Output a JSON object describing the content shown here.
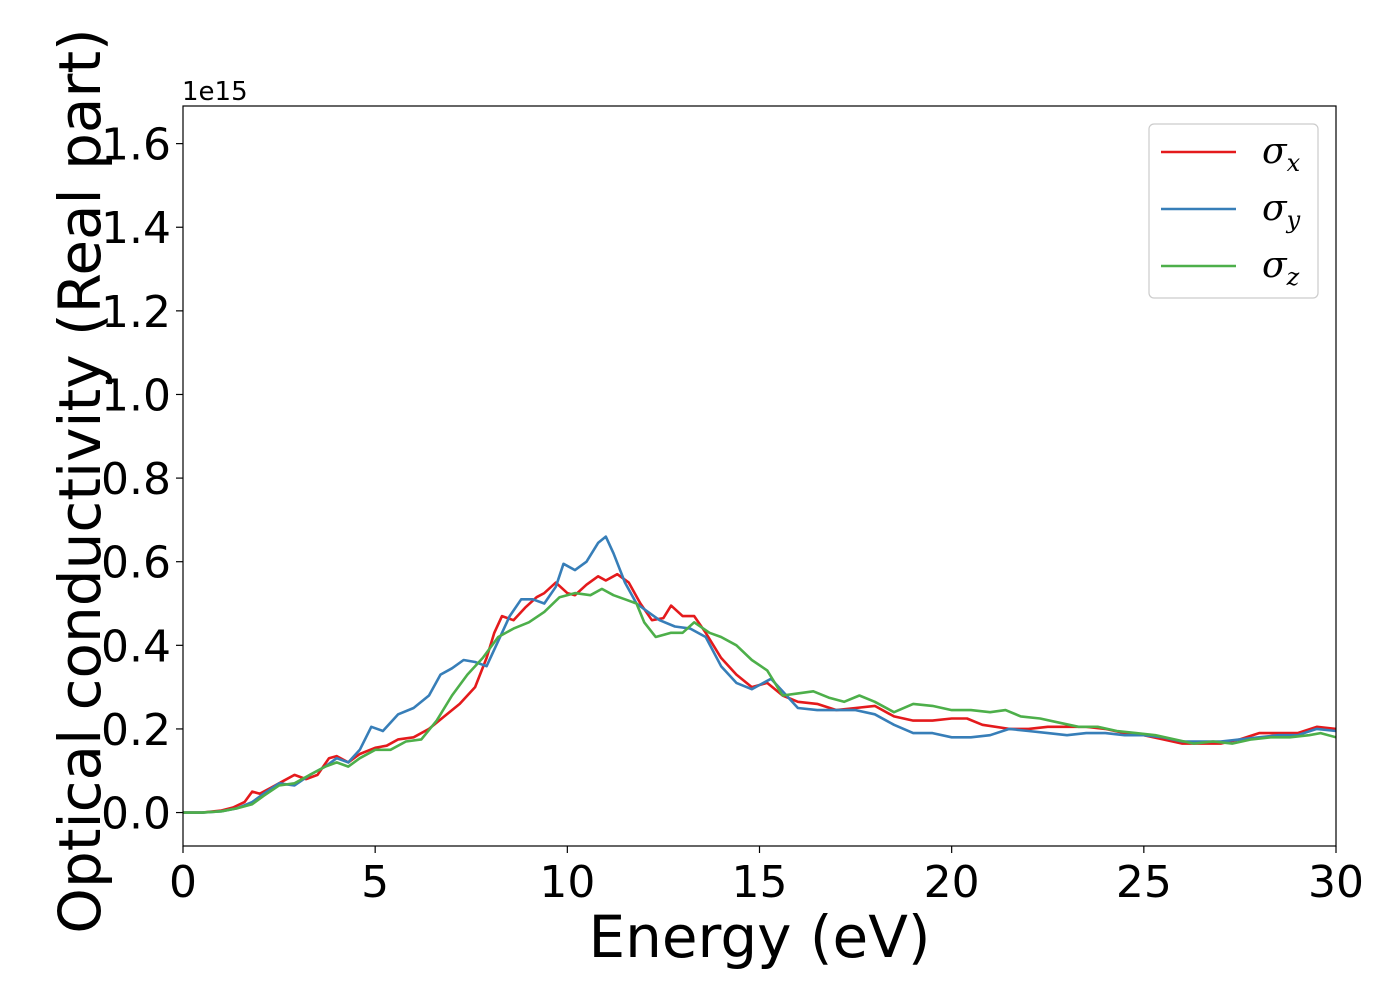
{
  "chart_data": {
    "type": "line",
    "title": "",
    "xlabel": "Energy (eV)",
    "ylabel": "Optical conductivity (Real part)",
    "offset_text": "1e15",
    "xlim": [
      0,
      30
    ],
    "ylim": [
      -0.08,
      1.69
    ],
    "y_scale_factor": 1000000000000000.0,
    "xticks": [
      0,
      5,
      10,
      15,
      20,
      25,
      30
    ],
    "xtick_labels": [
      "0",
      "5",
      "10",
      "15",
      "20",
      "25",
      "30"
    ],
    "yticks": [
      0.0,
      0.2,
      0.4,
      0.6,
      0.8,
      1.0,
      1.2,
      1.4,
      1.6
    ],
    "ytick_labels": [
      "0.0",
      "0.2",
      "0.4",
      "0.6",
      "0.8",
      "1.0",
      "1.2",
      "1.4",
      "1.6"
    ],
    "grid": false,
    "legend_position": "top-right",
    "series": [
      {
        "name": "σx",
        "legend_base": "σ",
        "legend_sub": "x",
        "color": "#e41a1c",
        "points": [
          [
            0,
            0
          ],
          [
            0.5,
            0
          ],
          [
            1,
            0.005
          ],
          [
            1.3,
            0.012
          ],
          [
            1.6,
            0.025
          ],
          [
            1.8,
            0.05
          ],
          [
            2,
            0.045
          ],
          [
            2.3,
            0.06
          ],
          [
            2.6,
            0.075
          ],
          [
            2.9,
            0.09
          ],
          [
            3.2,
            0.08
          ],
          [
            3.5,
            0.09
          ],
          [
            3.8,
            0.13
          ],
          [
            4.0,
            0.135
          ],
          [
            4.3,
            0.12
          ],
          [
            4.6,
            0.14
          ],
          [
            5.0,
            0.155
          ],
          [
            5.3,
            0.16
          ],
          [
            5.6,
            0.175
          ],
          [
            6.0,
            0.18
          ],
          [
            6.4,
            0.2
          ],
          [
            6.8,
            0.23
          ],
          [
            7.2,
            0.26
          ],
          [
            7.6,
            0.3
          ],
          [
            7.9,
            0.37
          ],
          [
            8.1,
            0.43
          ],
          [
            8.3,
            0.47
          ],
          [
            8.6,
            0.46
          ],
          [
            8.9,
            0.49
          ],
          [
            9.2,
            0.515
          ],
          [
            9.4,
            0.525
          ],
          [
            9.7,
            0.55
          ],
          [
            10.0,
            0.525
          ],
          [
            10.2,
            0.52
          ],
          [
            10.5,
            0.545
          ],
          [
            10.8,
            0.565
          ],
          [
            11.0,
            0.555
          ],
          [
            11.3,
            0.57
          ],
          [
            11.6,
            0.55
          ],
          [
            11.9,
            0.5
          ],
          [
            12.2,
            0.46
          ],
          [
            12.5,
            0.465
          ],
          [
            12.7,
            0.495
          ],
          [
            13.0,
            0.47
          ],
          [
            13.3,
            0.47
          ],
          [
            13.6,
            0.43
          ],
          [
            14.0,
            0.37
          ],
          [
            14.4,
            0.33
          ],
          [
            14.8,
            0.3
          ],
          [
            15.2,
            0.31
          ],
          [
            15.6,
            0.28
          ],
          [
            16.0,
            0.265
          ],
          [
            16.5,
            0.26
          ],
          [
            17.0,
            0.245
          ],
          [
            17.5,
            0.25
          ],
          [
            18.0,
            0.255
          ],
          [
            18.5,
            0.23
          ],
          [
            19.0,
            0.22
          ],
          [
            19.5,
            0.22
          ],
          [
            20.0,
            0.225
          ],
          [
            20.4,
            0.225
          ],
          [
            20.8,
            0.21
          ],
          [
            21.5,
            0.2
          ],
          [
            22.0,
            0.2
          ],
          [
            22.5,
            0.205
          ],
          [
            23.0,
            0.205
          ],
          [
            23.5,
            0.205
          ],
          [
            24.0,
            0.2
          ],
          [
            24.5,
            0.19
          ],
          [
            25.0,
            0.185
          ],
          [
            25.5,
            0.175
          ],
          [
            26.0,
            0.165
          ],
          [
            26.5,
            0.165
          ],
          [
            27.0,
            0.165
          ],
          [
            27.5,
            0.175
          ],
          [
            28.0,
            0.19
          ],
          [
            28.5,
            0.19
          ],
          [
            29.0,
            0.19
          ],
          [
            29.5,
            0.205
          ],
          [
            30,
            0.2
          ]
        ]
      },
      {
        "name": "σy",
        "legend_base": "σ",
        "legend_sub": "y",
        "color": "#377eb8",
        "points": [
          [
            0,
            0
          ],
          [
            0.5,
            0
          ],
          [
            1,
            0.003
          ],
          [
            1.4,
            0.01
          ],
          [
            1.8,
            0.025
          ],
          [
            2.1,
            0.045
          ],
          [
            2.5,
            0.07
          ],
          [
            2.9,
            0.065
          ],
          [
            3.3,
            0.09
          ],
          [
            3.7,
            0.11
          ],
          [
            4.0,
            0.13
          ],
          [
            4.3,
            0.12
          ],
          [
            4.6,
            0.15
          ],
          [
            4.9,
            0.205
          ],
          [
            5.2,
            0.195
          ],
          [
            5.6,
            0.235
          ],
          [
            6.0,
            0.25
          ],
          [
            6.4,
            0.28
          ],
          [
            6.7,
            0.33
          ],
          [
            7.0,
            0.345
          ],
          [
            7.3,
            0.365
          ],
          [
            7.6,
            0.36
          ],
          [
            7.9,
            0.35
          ],
          [
            8.2,
            0.41
          ],
          [
            8.5,
            0.47
          ],
          [
            8.8,
            0.51
          ],
          [
            9.1,
            0.51
          ],
          [
            9.4,
            0.5
          ],
          [
            9.7,
            0.54
          ],
          [
            9.9,
            0.595
          ],
          [
            10.2,
            0.58
          ],
          [
            10.5,
            0.6
          ],
          [
            10.8,
            0.645
          ],
          [
            11.0,
            0.66
          ],
          [
            11.2,
            0.62
          ],
          [
            11.5,
            0.55
          ],
          [
            11.8,
            0.5
          ],
          [
            12.1,
            0.48
          ],
          [
            12.4,
            0.46
          ],
          [
            12.8,
            0.445
          ],
          [
            13.2,
            0.44
          ],
          [
            13.6,
            0.42
          ],
          [
            14.0,
            0.35
          ],
          [
            14.4,
            0.31
          ],
          [
            14.8,
            0.295
          ],
          [
            15.0,
            0.305
          ],
          [
            15.3,
            0.32
          ],
          [
            15.6,
            0.29
          ],
          [
            16.0,
            0.25
          ],
          [
            16.5,
            0.245
          ],
          [
            17.0,
            0.245
          ],
          [
            17.5,
            0.245
          ],
          [
            18.0,
            0.235
          ],
          [
            18.5,
            0.21
          ],
          [
            19.0,
            0.19
          ],
          [
            19.5,
            0.19
          ],
          [
            20.0,
            0.18
          ],
          [
            20.5,
            0.18
          ],
          [
            21.0,
            0.185
          ],
          [
            21.5,
            0.2
          ],
          [
            22.0,
            0.195
          ],
          [
            22.5,
            0.19
          ],
          [
            23.0,
            0.185
          ],
          [
            23.5,
            0.19
          ],
          [
            24.0,
            0.19
          ],
          [
            24.5,
            0.185
          ],
          [
            25.0,
            0.185
          ],
          [
            25.5,
            0.18
          ],
          [
            26.0,
            0.17
          ],
          [
            26.5,
            0.17
          ],
          [
            27.0,
            0.17
          ],
          [
            27.5,
            0.175
          ],
          [
            28.0,
            0.18
          ],
          [
            28.5,
            0.185
          ],
          [
            29.0,
            0.185
          ],
          [
            29.5,
            0.2
          ],
          [
            30,
            0.195
          ]
        ]
      },
      {
        "name": "σz",
        "legend_base": "σ",
        "legend_sub": "z",
        "color": "#4daf4a",
        "points": [
          [
            0,
            0
          ],
          [
            0.5,
            0
          ],
          [
            1,
            0.003
          ],
          [
            1.4,
            0.01
          ],
          [
            1.8,
            0.02
          ],
          [
            2.1,
            0.04
          ],
          [
            2.5,
            0.065
          ],
          [
            2.9,
            0.07
          ],
          [
            3.3,
            0.09
          ],
          [
            3.7,
            0.11
          ],
          [
            4.0,
            0.12
          ],
          [
            4.3,
            0.11
          ],
          [
            4.6,
            0.13
          ],
          [
            5.0,
            0.15
          ],
          [
            5.4,
            0.15
          ],
          [
            5.8,
            0.17
          ],
          [
            6.2,
            0.175
          ],
          [
            6.6,
            0.22
          ],
          [
            7.0,
            0.28
          ],
          [
            7.4,
            0.33
          ],
          [
            7.8,
            0.37
          ],
          [
            8.2,
            0.42
          ],
          [
            8.6,
            0.44
          ],
          [
            9.0,
            0.455
          ],
          [
            9.4,
            0.48
          ],
          [
            9.8,
            0.515
          ],
          [
            10.2,
            0.525
          ],
          [
            10.6,
            0.52
          ],
          [
            10.9,
            0.535
          ],
          [
            11.2,
            0.52
          ],
          [
            11.5,
            0.51
          ],
          [
            11.8,
            0.5
          ],
          [
            12.0,
            0.455
          ],
          [
            12.3,
            0.42
          ],
          [
            12.7,
            0.43
          ],
          [
            13.0,
            0.43
          ],
          [
            13.3,
            0.455
          ],
          [
            13.7,
            0.43
          ],
          [
            14.0,
            0.42
          ],
          [
            14.4,
            0.4
          ],
          [
            14.8,
            0.365
          ],
          [
            15.2,
            0.34
          ],
          [
            15.6,
            0.28
          ],
          [
            16.0,
            0.285
          ],
          [
            16.4,
            0.29
          ],
          [
            16.8,
            0.275
          ],
          [
            17.2,
            0.265
          ],
          [
            17.6,
            0.28
          ],
          [
            18.0,
            0.265
          ],
          [
            18.5,
            0.24
          ],
          [
            19.0,
            0.26
          ],
          [
            19.5,
            0.255
          ],
          [
            20.0,
            0.245
          ],
          [
            20.5,
            0.245
          ],
          [
            21.0,
            0.24
          ],
          [
            21.4,
            0.245
          ],
          [
            21.8,
            0.23
          ],
          [
            22.3,
            0.225
          ],
          [
            22.8,
            0.215
          ],
          [
            23.3,
            0.205
          ],
          [
            23.8,
            0.205
          ],
          [
            24.3,
            0.195
          ],
          [
            24.8,
            0.19
          ],
          [
            25.3,
            0.185
          ],
          [
            25.8,
            0.175
          ],
          [
            26.3,
            0.165
          ],
          [
            26.8,
            0.17
          ],
          [
            27.3,
            0.165
          ],
          [
            27.8,
            0.175
          ],
          [
            28.3,
            0.18
          ],
          [
            28.8,
            0.18
          ],
          [
            29.3,
            0.185
          ],
          [
            29.6,
            0.19
          ],
          [
            30,
            0.18
          ]
        ]
      }
    ]
  }
}
